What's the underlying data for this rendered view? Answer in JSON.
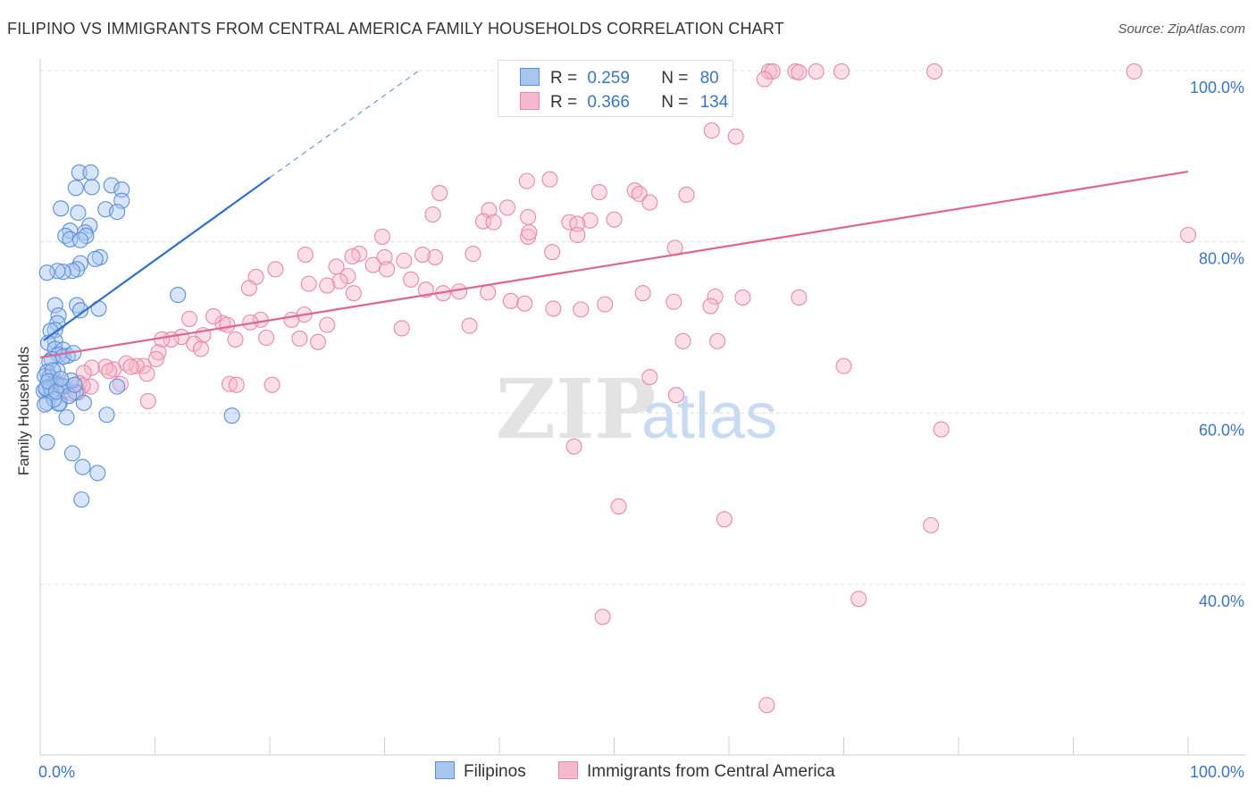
{
  "title": "FILIPINO VS IMMIGRANTS FROM CENTRAL AMERICA FAMILY HOUSEHOLDS CORRELATION CHART",
  "source": "Source: ZipAtlas.com",
  "watermark": {
    "zip": "ZIP",
    "atlas": "atlas"
  },
  "legend": {
    "r_label": "R =",
    "n_label": "N =",
    "filipinos": {
      "r": "0.259",
      "n": "80"
    },
    "immigrants": {
      "r": "0.366",
      "n": "134"
    }
  },
  "colors": {
    "filipinos_fill": "#a9c6ef",
    "filipinos_stroke": "#5a8fd8",
    "filipinos_line": "#2d6fcc",
    "immigrants_fill": "#f6b8cc",
    "immigrants_stroke": "#e889a7",
    "immigrants_line": "#e0648f",
    "tick_text": "#3a74c9"
  },
  "chart_data": {
    "type": "scatter",
    "xlabel": "",
    "ylabel": "Family Households",
    "xlim": [
      0,
      100
    ],
    "ylim": [
      18,
      102
    ],
    "x_tick_labels": [
      "0.0%",
      "100.0%"
    ],
    "y_ticks": [
      40,
      60,
      80,
      100
    ],
    "y_tick_labels": [
      "40.0%",
      "60.0%",
      "80.0%",
      "100.0%"
    ],
    "grid": "horizontal dashed",
    "legend_position": "top-center",
    "series": [
      {
        "name": "Filipinos",
        "trendline": {
          "x0": 0.3,
          "y0": 68.5,
          "x1": 20,
          "y1": 87.5,
          "dashed_to": {
            "x": 33,
            "y": 100
          }
        },
        "points": [
          [
            3.4,
            88.1
          ],
          [
            4.4,
            88.1
          ],
          [
            3.1,
            86.3
          ],
          [
            4.5,
            86.4
          ],
          [
            6.2,
            86.6
          ],
          [
            7.1,
            86.1
          ],
          [
            7.1,
            84.8
          ],
          [
            1.8,
            83.9
          ],
          [
            5.7,
            83.8
          ],
          [
            3.3,
            83.4
          ],
          [
            6.7,
            83.5
          ],
          [
            4.3,
            81.9
          ],
          [
            2.6,
            81.3
          ],
          [
            3.9,
            81.1
          ],
          [
            2.2,
            80.7
          ],
          [
            4.0,
            80.7
          ],
          [
            2.6,
            80.3
          ],
          [
            3.5,
            80.2
          ],
          [
            5.2,
            78.2
          ],
          [
            4.8,
            78.0
          ],
          [
            3.5,
            77.5
          ],
          [
            3.2,
            76.8
          ],
          [
            2.8,
            76.6
          ],
          [
            2.0,
            76.5
          ],
          [
            1.5,
            76.6
          ],
          [
            0.6,
            76.4
          ],
          [
            12.0,
            73.8
          ],
          [
            1.3,
            72.6
          ],
          [
            3.2,
            72.6
          ],
          [
            3.5,
            72.0
          ],
          [
            5.1,
            72.2
          ],
          [
            1.6,
            71.4
          ],
          [
            1.5,
            70.5
          ],
          [
            1.3,
            69.7
          ],
          [
            0.9,
            69.6
          ],
          [
            1.3,
            68.4
          ],
          [
            0.7,
            68.2
          ],
          [
            1.3,
            67.5
          ],
          [
            2.0,
            67.4
          ],
          [
            1.6,
            66.8
          ],
          [
            2.4,
            66.7
          ],
          [
            1.0,
            66.3
          ],
          [
            0.8,
            66.0
          ],
          [
            1.5,
            65.0
          ],
          [
            0.6,
            64.8
          ],
          [
            0.8,
            64.2
          ],
          [
            1.3,
            63.5
          ],
          [
            0.5,
            62.8
          ],
          [
            2.1,
            63.1
          ],
          [
            0.3,
            62.6
          ],
          [
            1.0,
            62.2
          ],
          [
            3.1,
            62.4
          ],
          [
            1.7,
            61.2
          ],
          [
            0.6,
            61.2
          ],
          [
            1.6,
            61.1
          ],
          [
            6.7,
            63.1
          ],
          [
            2.3,
            59.5
          ],
          [
            5.8,
            59.8
          ],
          [
            16.7,
            59.7
          ],
          [
            0.6,
            56.6
          ],
          [
            2.8,
            55.3
          ],
          [
            3.7,
            53.7
          ],
          [
            5.0,
            53.0
          ],
          [
            3.6,
            49.9
          ],
          [
            0.4,
            64.3
          ],
          [
            0.9,
            63.0
          ],
          [
            2.7,
            63.8
          ],
          [
            1.9,
            63.2
          ],
          [
            0.5,
            62.9
          ],
          [
            1.2,
            61.6
          ],
          [
            2.0,
            66.6
          ],
          [
            1.1,
            65.0
          ],
          [
            0.7,
            63.7
          ],
          [
            1.4,
            62.5
          ],
          [
            2.5,
            62.0
          ],
          [
            3.0,
            63.3
          ],
          [
            1.8,
            64.0
          ],
          [
            0.4,
            61.0
          ],
          [
            3.8,
            61.2
          ],
          [
            2.9,
            67.0
          ]
        ]
      },
      {
        "name": "Immigrants from Central America",
        "trendline": {
          "x0": 0,
          "y0": 66.5,
          "x1": 100,
          "y1": 88.2
        },
        "points": [
          [
            56.0,
            99.9
          ],
          [
            58.0,
            99.9
          ],
          [
            63.5,
            99.9
          ],
          [
            63.8,
            99.9
          ],
          [
            65.8,
            99.9
          ],
          [
            66.1,
            99.8
          ],
          [
            67.6,
            99.9
          ],
          [
            69.8,
            99.9
          ],
          [
            77.9,
            99.9
          ],
          [
            95.3,
            99.9
          ],
          [
            63.1,
            99.0
          ],
          [
            52.3,
            97.1
          ],
          [
            47.3,
            95.7
          ],
          [
            58.5,
            93.0
          ],
          [
            60.6,
            92.3
          ],
          [
            42.4,
            87.1
          ],
          [
            44.4,
            87.3
          ],
          [
            34.8,
            85.7
          ],
          [
            48.7,
            85.8
          ],
          [
            51.8,
            86.0
          ],
          [
            52.2,
            85.6
          ],
          [
            56.3,
            85.5
          ],
          [
            53.1,
            84.6
          ],
          [
            39.1,
            83.7
          ],
          [
            40.7,
            84.0
          ],
          [
            34.2,
            83.2
          ],
          [
            42.5,
            82.9
          ],
          [
            47.9,
            82.5
          ],
          [
            38.6,
            82.4
          ],
          [
            50.0,
            82.6
          ],
          [
            46.1,
            82.3
          ],
          [
            46.8,
            82.1
          ],
          [
            39.5,
            82.3
          ],
          [
            42.5,
            80.6
          ],
          [
            46.8,
            80.8
          ],
          [
            42.6,
            81.1
          ],
          [
            55.3,
            79.3
          ],
          [
            44.6,
            78.8
          ],
          [
            34.4,
            78.2
          ],
          [
            27.8,
            78.6
          ],
          [
            30.0,
            78.2
          ],
          [
            23.1,
            78.5
          ],
          [
            33.3,
            78.5
          ],
          [
            31.7,
            77.8
          ],
          [
            29.0,
            77.3
          ],
          [
            25.8,
            77.1
          ],
          [
            26.8,
            76.0
          ],
          [
            18.8,
            75.9
          ],
          [
            32.3,
            75.6
          ],
          [
            26.1,
            75.4
          ],
          [
            18.2,
            74.6
          ],
          [
            25.0,
            74.9
          ],
          [
            23.4,
            75.1
          ],
          [
            27.3,
            74.0
          ],
          [
            33.6,
            74.4
          ],
          [
            36.5,
            74.2
          ],
          [
            35.1,
            74.0
          ],
          [
            39.0,
            74.1
          ],
          [
            41.0,
            73.1
          ],
          [
            42.2,
            72.8
          ],
          [
            44.7,
            72.2
          ],
          [
            49.2,
            72.7
          ],
          [
            47.1,
            72.1
          ],
          [
            52.5,
            74.0
          ],
          [
            55.2,
            73.0
          ],
          [
            58.8,
            73.6
          ],
          [
            23.0,
            71.5
          ],
          [
            21.9,
            70.9
          ],
          [
            19.2,
            70.9
          ],
          [
            18.3,
            70.6
          ],
          [
            15.9,
            70.5
          ],
          [
            15.1,
            71.3
          ],
          [
            13.0,
            71.0
          ],
          [
            16.3,
            70.3
          ],
          [
            25.0,
            70.3
          ],
          [
            14.2,
            69.1
          ],
          [
            12.3,
            68.9
          ],
          [
            11.4,
            68.6
          ],
          [
            10.6,
            68.6
          ],
          [
            17.0,
            68.6
          ],
          [
            19.7,
            68.8
          ],
          [
            22.6,
            68.7
          ],
          [
            31.5,
            69.9
          ],
          [
            24.2,
            68.3
          ],
          [
            13.4,
            68.1
          ],
          [
            10.3,
            67.1
          ],
          [
            10.1,
            66.3
          ],
          [
            9.0,
            65.5
          ],
          [
            8.4,
            65.5
          ],
          [
            7.5,
            65.8
          ],
          [
            7.9,
            65.4
          ],
          [
            6.4,
            65.1
          ],
          [
            5.7,
            65.4
          ],
          [
            4.5,
            65.3
          ],
          [
            6.0,
            64.9
          ],
          [
            9.3,
            64.6
          ],
          [
            3.8,
            64.7
          ],
          [
            3.4,
            63.5
          ],
          [
            4.4,
            63.1
          ],
          [
            7.0,
            63.4
          ],
          [
            3.7,
            63.2
          ],
          [
            1.7,
            63.2
          ],
          [
            2.1,
            62.6
          ],
          [
            3.3,
            62.4
          ],
          [
            2.8,
            62.3
          ],
          [
            1.2,
            63.5
          ],
          [
            1.1,
            64.0
          ],
          [
            16.5,
            63.4
          ],
          [
            17.1,
            63.3
          ],
          [
            20.2,
            63.3
          ],
          [
            9.4,
            61.4
          ],
          [
            56.0,
            68.4
          ],
          [
            59.0,
            68.4
          ],
          [
            70.0,
            65.5
          ],
          [
            53.1,
            64.2
          ],
          [
            55.4,
            62.1
          ],
          [
            78.5,
            58.1
          ],
          [
            46.5,
            56.1
          ],
          [
            50.4,
            49.1
          ],
          [
            59.6,
            47.6
          ],
          [
            77.6,
            46.9
          ],
          [
            71.3,
            38.3
          ],
          [
            49.0,
            36.2
          ],
          [
            63.3,
            25.9
          ],
          [
            100.0,
            80.8
          ],
          [
            66.1,
            73.5
          ],
          [
            61.2,
            73.5
          ],
          [
            37.4,
            70.2
          ],
          [
            58.4,
            72.5
          ],
          [
            37.7,
            78.6
          ],
          [
            29.8,
            80.6
          ],
          [
            27.2,
            78.3
          ],
          [
            20.5,
            76.8
          ],
          [
            30.2,
            76.8
          ],
          [
            14.0,
            67.5
          ]
        ]
      }
    ]
  }
}
